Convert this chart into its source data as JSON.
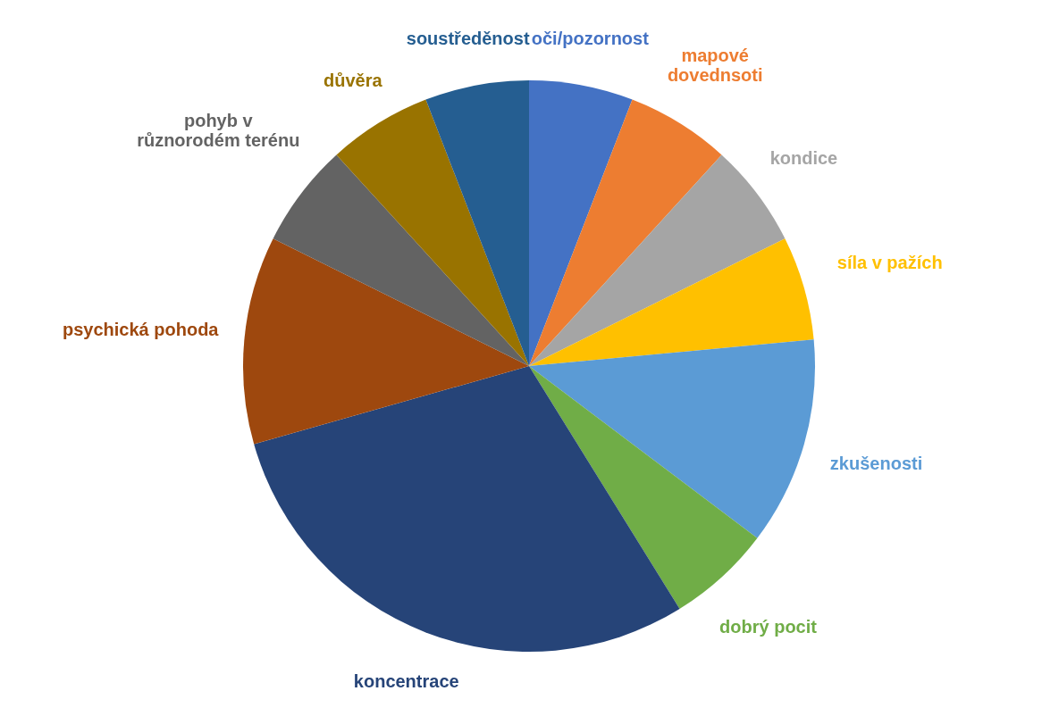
{
  "chart_data": {
    "type": "pie",
    "categories": [
      "oči/pozornost",
      "mapové\ndovednsoti",
      "kondice",
      "síla v pažích",
      "zkušenosti",
      "dobrý pocit",
      "koncentrace",
      "psychická pohoda",
      "pohyb v\nrůznorodém terénu",
      "důvěra",
      "soustředěnost"
    ],
    "values": [
      5.88,
      5.88,
      5.88,
      5.88,
      11.77,
      5.88,
      29.42,
      11.77,
      5.88,
      5.88,
      5.88
    ],
    "colors": [
      "#4472c4",
      "#ed7d31",
      "#a5a5a5",
      "#ffc000",
      "#5b9bd5",
      "#70ad47",
      "#264478",
      "#9e480e",
      "#636363",
      "#997300",
      "#255e91"
    ]
  }
}
